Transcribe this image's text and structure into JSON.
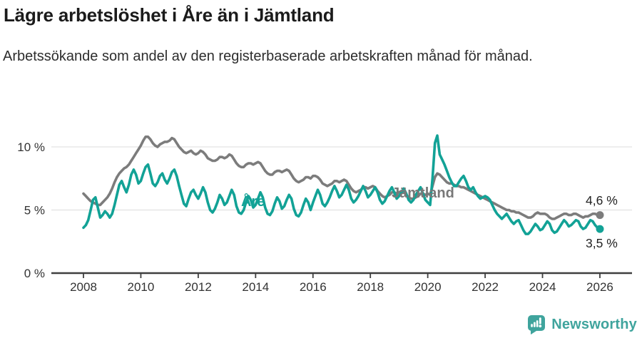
{
  "header": {
    "title": "Lägre arbetslöshet i Åre än i Jämtland",
    "subtitle": "Arbetssökande som andel av den registerbaserade arbetskraften månad för månad."
  },
  "footer": {
    "brand": "Newsworthy",
    "brand_color": "#3fa49d"
  },
  "colors": {
    "are_line": "#12a296",
    "jamtland_line": "#7c7c7c",
    "gridline": "#dcdcdc",
    "axis": "#3f3f3f",
    "tick_text": "#333333",
    "title_text": "#1b1b1b"
  },
  "chart_data": {
    "type": "line",
    "title": "Lägre arbetslöshet i Åre än i Jämtland",
    "subtitle": "Arbetssökande som andel av den registerbaserade arbetskraften månad för månad.",
    "unit": "%",
    "frequency": "monthly",
    "start": "2008-01",
    "end": "2026-01",
    "x_start_year": 2008,
    "x_ticks": [
      2008,
      2010,
      2012,
      2014,
      2016,
      2018,
      2020,
      2022,
      2024,
      2026
    ],
    "y_ticks": [
      {
        "value": 0,
        "label": "0 %"
      },
      {
        "value": 5,
        "label": "5 %"
      },
      {
        "value": 10,
        "label": "10 %"
      }
    ],
    "ylim": [
      0,
      11.5
    ],
    "grid": "horizontal-only",
    "legend_position": "inline-labels",
    "series": [
      {
        "id": "jamtland",
        "name": "Jämtland",
        "color": "#7c7c7c",
        "end_label": "4,6 %",
        "end_value": 4.6,
        "values": [
          6.3,
          6.1,
          5.9,
          5.7,
          5.6,
          5.5,
          5.4,
          5.4,
          5.6,
          5.8,
          6.0,
          6.3,
          6.7,
          7.2,
          7.6,
          7.9,
          8.1,
          8.3,
          8.4,
          8.6,
          8.9,
          9.2,
          9.5,
          9.8,
          10.1,
          10.5,
          10.8,
          10.8,
          10.6,
          10.3,
          10.1,
          10.0,
          10.2,
          10.3,
          10.4,
          10.4,
          10.5,
          10.7,
          10.6,
          10.3,
          10.0,
          9.8,
          9.6,
          9.5,
          9.6,
          9.7,
          9.5,
          9.4,
          9.5,
          9.7,
          9.6,
          9.4,
          9.1,
          9.0,
          8.9,
          8.9,
          9.0,
          9.2,
          9.2,
          9.1,
          9.2,
          9.4,
          9.3,
          9.0,
          8.7,
          8.5,
          8.4,
          8.4,
          8.6,
          8.7,
          8.7,
          8.6,
          8.7,
          8.8,
          8.7,
          8.4,
          8.1,
          7.9,
          7.8,
          7.8,
          8.0,
          8.1,
          8.1,
          8.0,
          8.1,
          8.2,
          8.1,
          7.8,
          7.5,
          7.3,
          7.2,
          7.3,
          7.4,
          7.6,
          7.6,
          7.5,
          7.7,
          7.7,
          7.6,
          7.4,
          7.1,
          7.0,
          6.9,
          7.0,
          7.1,
          7.3,
          7.3,
          7.2,
          7.3,
          7.4,
          7.3,
          7.0,
          6.7,
          6.5,
          6.4,
          6.5,
          6.6,
          6.8,
          6.8,
          6.7,
          6.8,
          6.9,
          6.8,
          6.5,
          6.3,
          6.1,
          6.0,
          6.1,
          6.2,
          6.4,
          6.4,
          6.3,
          6.4,
          6.5,
          6.4,
          6.2,
          6.0,
          5.9,
          5.9,
          6.0,
          6.1,
          6.3,
          6.3,
          6.2,
          6.3,
          6.2,
          6.9,
          7.6,
          7.9,
          7.8,
          7.6,
          7.4,
          7.2,
          7.1,
          7.1,
          7.0,
          6.9,
          6.9,
          6.8,
          6.8,
          6.7,
          6.6,
          6.5,
          6.4,
          6.3,
          6.2,
          6.1,
          6.0,
          5.9,
          5.8,
          5.7,
          5.6,
          5.5,
          5.4,
          5.3,
          5.2,
          5.1,
          5.0,
          5.0,
          4.9,
          4.9,
          4.8,
          4.8,
          4.7,
          4.6,
          4.5,
          4.4,
          4.4,
          4.5,
          4.7,
          4.8,
          4.7,
          4.7,
          4.7,
          4.6,
          4.4,
          4.3,
          4.3,
          4.4,
          4.5,
          4.6,
          4.7,
          4.7,
          4.6,
          4.6,
          4.7,
          4.7,
          4.6,
          4.5,
          4.4,
          4.5,
          4.5,
          4.6,
          4.7,
          4.7,
          4.6,
          4.6
        ]
      },
      {
        "id": "are",
        "name": "Åre",
        "color": "#12a296",
        "end_label": "3,5 %",
        "end_value": 3.5,
        "values": [
          3.6,
          3.8,
          4.2,
          5.0,
          5.8,
          6.0,
          5.2,
          4.4,
          4.6,
          4.9,
          4.7,
          4.4,
          4.7,
          5.4,
          6.2,
          7.0,
          7.3,
          6.8,
          6.4,
          7.0,
          7.8,
          8.2,
          7.8,
          7.1,
          7.3,
          7.9,
          8.4,
          8.6,
          7.9,
          7.1,
          6.9,
          7.2,
          7.7,
          7.9,
          7.4,
          7.1,
          7.5,
          8.0,
          8.2,
          7.7,
          6.9,
          6.2,
          5.5,
          5.3,
          5.9,
          6.4,
          6.6,
          6.2,
          5.9,
          6.3,
          6.8,
          6.4,
          5.6,
          5.0,
          4.8,
          5.1,
          5.6,
          6.2,
          5.9,
          5.4,
          5.6,
          6.1,
          6.6,
          6.2,
          5.3,
          4.8,
          4.7,
          5.0,
          5.6,
          6.1,
          5.8,
          5.2,
          5.4,
          5.9,
          6.4,
          6.0,
          5.2,
          4.7,
          4.6,
          4.9,
          5.5,
          6.0,
          5.7,
          5.1,
          5.3,
          5.8,
          6.2,
          5.9,
          5.1,
          4.6,
          4.5,
          4.8,
          5.4,
          5.9,
          5.6,
          5.0,
          5.6,
          6.1,
          6.6,
          6.2,
          5.5,
          5.3,
          5.6,
          6.0,
          6.5,
          6.9,
          6.5,
          6.0,
          6.2,
          6.6,
          7.0,
          6.6,
          5.9,
          5.6,
          5.8,
          6.1,
          6.5,
          6.9,
          6.5,
          6.0,
          6.2,
          6.5,
          6.8,
          6.4,
          5.8,
          5.5,
          5.7,
          6.1,
          6.5,
          6.8,
          6.4,
          5.9,
          6.1,
          6.4,
          6.7,
          6.3,
          5.8,
          5.6,
          5.8,
          6.2,
          6.5,
          6.8,
          6.3,
          5.8,
          5.6,
          5.4,
          7.5,
          10.3,
          10.9,
          9.4,
          9.0,
          8.6,
          8.1,
          7.6,
          7.2,
          6.9,
          6.9,
          7.2,
          7.5,
          7.7,
          7.3,
          6.8,
          6.6,
          6.8,
          6.4,
          6.1,
          5.9,
          6.0,
          6.1,
          6.0,
          5.8,
          5.4,
          5.0,
          4.7,
          4.5,
          4.3,
          4.5,
          4.7,
          4.4,
          4.1,
          3.9,
          4.1,
          4.2,
          3.8,
          3.4,
          3.1,
          3.1,
          3.3,
          3.6,
          3.9,
          3.7,
          3.4,
          3.5,
          3.8,
          4.1,
          3.9,
          3.4,
          3.2,
          3.3,
          3.6,
          3.9,
          4.2,
          4.0,
          3.7,
          3.8,
          4.0,
          4.2,
          4.1,
          3.7,
          3.5,
          3.6,
          3.9,
          4.2,
          4.1,
          3.8,
          3.6,
          3.5
        ]
      }
    ]
  }
}
